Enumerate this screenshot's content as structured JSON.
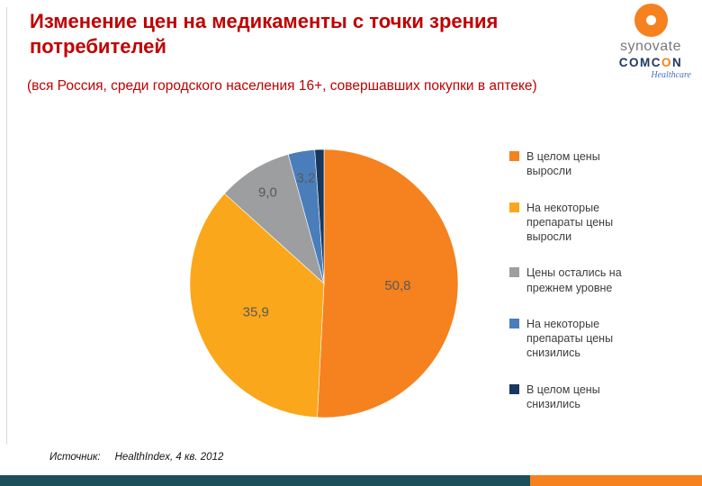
{
  "slide": {
    "title": "Изменение цен на медикаменты с точки зрения потребителей",
    "subtitle": "(вся Россия, среди городского населения 16+, совершавших покупки в аптеке)",
    "title_color": "#C00000",
    "source_label": "Источник:",
    "source_value": "HealthIndex, 4 кв.  2012"
  },
  "logo": {
    "synovate": "synovate",
    "comcon_part1": "COMC",
    "comcon_o": "O",
    "comcon_part2": "N",
    "healthcare": "Healthcare"
  },
  "chart_data": {
    "type": "pie",
    "title": "",
    "start_angle_deg": 0,
    "direction": "clockwise",
    "legend_position": "right",
    "label_color": "#595959",
    "slices": [
      {
        "label": "В целом цены выросли",
        "value": 50.8,
        "display": "50,8",
        "color": "#F5821F"
      },
      {
        "label": "На некоторые препараты цены выросли",
        "value": 35.9,
        "display": "35,9",
        "color": "#FBA71B"
      },
      {
        "label": "Цены остались на прежнем уровне",
        "value": 9.0,
        "display": "9,0",
        "color": "#9C9EA0"
      },
      {
        "label": "На некоторые препараты цены снизились",
        "value": 3.2,
        "display": "3,2",
        "color": "#4A7EBB"
      },
      {
        "label": "В целом цены снизились",
        "value": 1.1,
        "display": "",
        "color": "#17375D"
      }
    ]
  },
  "footer": {
    "bar_color": "#1C4F58",
    "accent_color": "#F5821F"
  }
}
